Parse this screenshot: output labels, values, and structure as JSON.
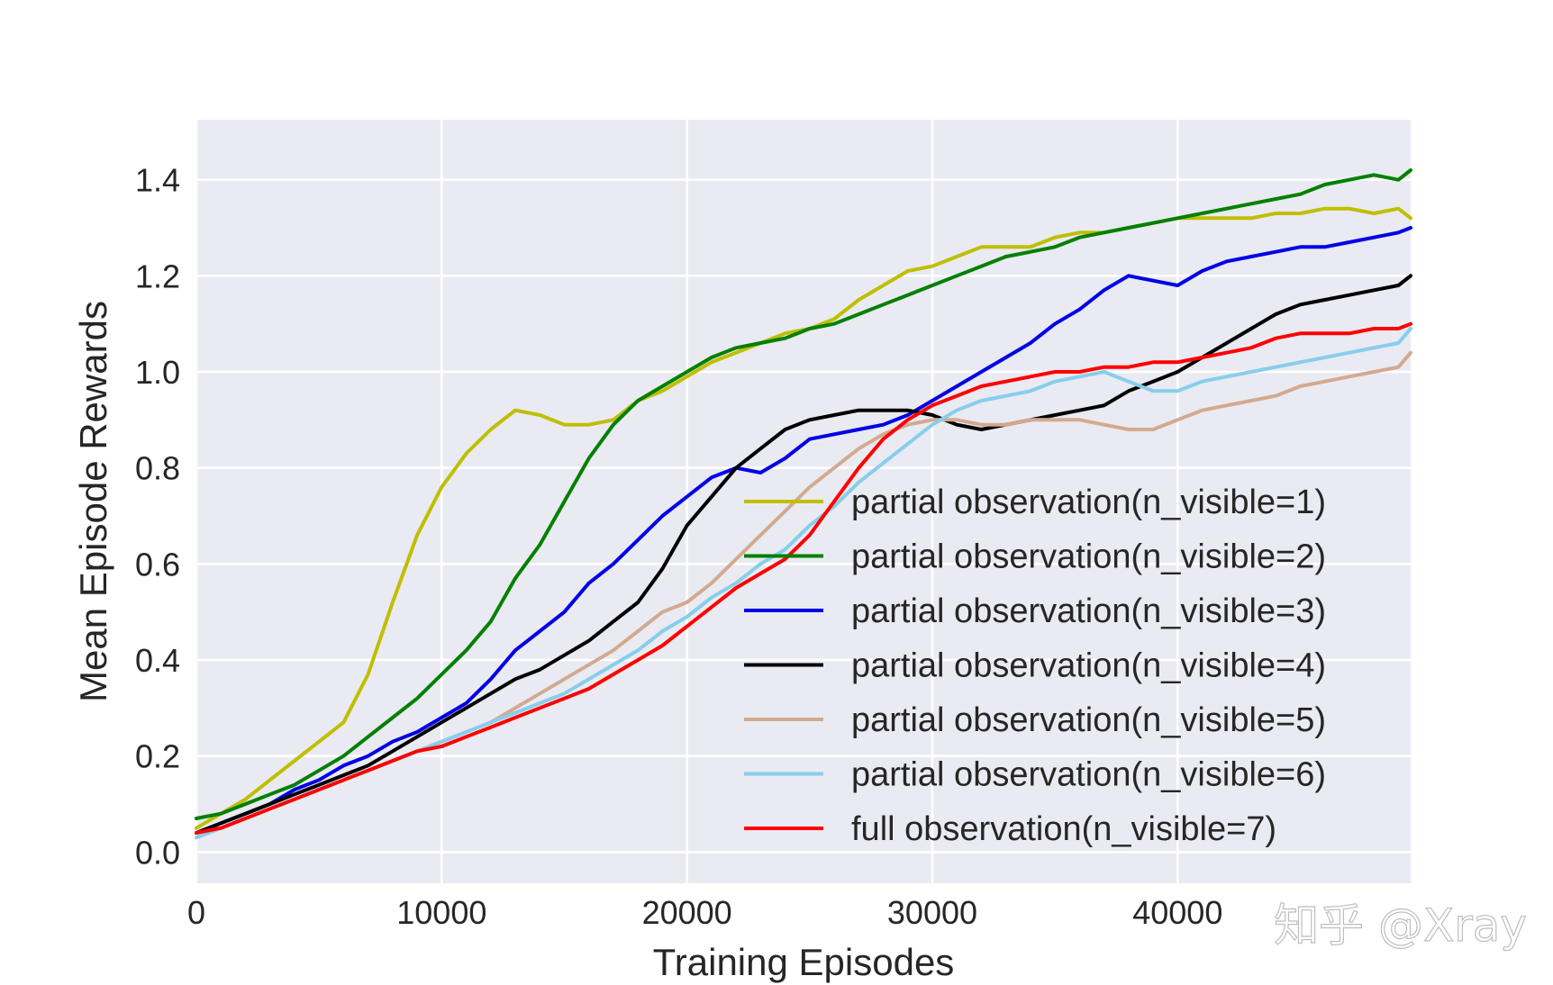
{
  "watermark": "知乎 @Xray",
  "chart_data": {
    "type": "line",
    "title": "",
    "xlabel": "Training Episodes",
    "ylabel": "Mean Episode Rewards",
    "xlim": [
      0,
      49500
    ],
    "ylim": [
      -0.065,
      1.525
    ],
    "xticks": [
      0,
      10000,
      20000,
      30000,
      40000
    ],
    "yticks": [
      0.0,
      0.2,
      0.4,
      0.6,
      0.8,
      1.0,
      1.2,
      1.4
    ],
    "x_tick_labels": [
      "0",
      "10000",
      "20000",
      "30000",
      "40000"
    ],
    "y_tick_labels": [
      "0.0",
      "0.2",
      "0.4",
      "0.6",
      "0.8",
      "1.0",
      "1.2",
      "1.4"
    ],
    "grid": true,
    "legend_position": "lower-right",
    "x": [
      0,
      1000,
      2000,
      3000,
      4000,
      5000,
      6000,
      7000,
      8000,
      9000,
      10000,
      11000,
      12000,
      13000,
      14000,
      15000,
      16000,
      17000,
      18000,
      19000,
      20000,
      21000,
      22000,
      23000,
      24000,
      25000,
      26000,
      27000,
      28000,
      29000,
      30000,
      31000,
      32000,
      33000,
      34000,
      35000,
      36000,
      37000,
      38000,
      39000,
      40000,
      41000,
      42000,
      43000,
      44000,
      45000,
      46000,
      47000,
      48000,
      49000,
      49500
    ],
    "series": [
      {
        "name": "partial observation(n_visible=1)",
        "color": "#bfbf00",
        "values": [
          0.05,
          0.08,
          0.11,
          0.15,
          0.19,
          0.23,
          0.27,
          0.37,
          0.52,
          0.66,
          0.76,
          0.83,
          0.88,
          0.92,
          0.91,
          0.89,
          0.89,
          0.9,
          0.94,
          0.96,
          0.99,
          1.02,
          1.04,
          1.06,
          1.08,
          1.09,
          1.11,
          1.15,
          1.18,
          1.21,
          1.22,
          1.24,
          1.26,
          1.26,
          1.26,
          1.28,
          1.29,
          1.29,
          1.3,
          1.31,
          1.32,
          1.32,
          1.32,
          1.32,
          1.33,
          1.33,
          1.34,
          1.34,
          1.33,
          1.34,
          1.32
        ]
      },
      {
        "name": "partial observation(n_visible=2)",
        "color": "#008000",
        "values": [
          0.07,
          0.08,
          0.1,
          0.12,
          0.14,
          0.17,
          0.2,
          0.24,
          0.28,
          0.32,
          0.37,
          0.42,
          0.48,
          0.57,
          0.64,
          0.73,
          0.82,
          0.89,
          0.94,
          0.97,
          1.0,
          1.03,
          1.05,
          1.06,
          1.07,
          1.09,
          1.1,
          1.12,
          1.14,
          1.16,
          1.18,
          1.2,
          1.22,
          1.24,
          1.25,
          1.26,
          1.28,
          1.29,
          1.3,
          1.31,
          1.32,
          1.33,
          1.34,
          1.35,
          1.36,
          1.37,
          1.39,
          1.4,
          1.41,
          1.4,
          1.42
        ]
      },
      {
        "name": "partial observation(n_visible=3)",
        "color": "#0000e6",
        "values": [
          0.04,
          0.06,
          0.08,
          0.1,
          0.13,
          0.15,
          0.18,
          0.2,
          0.23,
          0.25,
          0.28,
          0.31,
          0.36,
          0.42,
          0.46,
          0.5,
          0.56,
          0.6,
          0.65,
          0.7,
          0.74,
          0.78,
          0.8,
          0.79,
          0.82,
          0.86,
          0.87,
          0.88,
          0.89,
          0.91,
          0.94,
          0.97,
          1.0,
          1.03,
          1.06,
          1.1,
          1.13,
          1.17,
          1.2,
          1.19,
          1.18,
          1.21,
          1.23,
          1.24,
          1.25,
          1.26,
          1.26,
          1.27,
          1.28,
          1.29,
          1.3
        ]
      },
      {
        "name": "partial observation(n_visible=4)",
        "color": "#000000",
        "values": [
          0.04,
          0.06,
          0.08,
          0.1,
          0.12,
          0.14,
          0.16,
          0.18,
          0.21,
          0.24,
          0.27,
          0.3,
          0.33,
          0.36,
          0.38,
          0.41,
          0.44,
          0.48,
          0.52,
          0.59,
          0.68,
          0.74,
          0.8,
          0.84,
          0.88,
          0.9,
          0.91,
          0.92,
          0.92,
          0.92,
          0.91,
          0.89,
          0.88,
          0.89,
          0.9,
          0.91,
          0.92,
          0.93,
          0.96,
          0.98,
          1.0,
          1.03,
          1.06,
          1.09,
          1.12,
          1.14,
          1.15,
          1.16,
          1.17,
          1.18,
          1.2
        ]
      },
      {
        "name": "partial observation(n_visible=5)",
        "color": "#d2aa90",
        "values": [
          0.04,
          0.05,
          0.07,
          0.09,
          0.11,
          0.13,
          0.15,
          0.17,
          0.19,
          0.21,
          0.23,
          0.25,
          0.27,
          0.3,
          0.33,
          0.36,
          0.39,
          0.42,
          0.46,
          0.5,
          0.52,
          0.56,
          0.61,
          0.66,
          0.71,
          0.76,
          0.8,
          0.84,
          0.87,
          0.89,
          0.9,
          0.9,
          0.89,
          0.89,
          0.9,
          0.9,
          0.9,
          0.89,
          0.88,
          0.88,
          0.9,
          0.92,
          0.93,
          0.94,
          0.95,
          0.97,
          0.98,
          0.99,
          1.0,
          1.01,
          1.04
        ]
      },
      {
        "name": "partial observation(n_visible=6)",
        "color": "#87ceeb",
        "values": [
          0.03,
          0.05,
          0.07,
          0.09,
          0.11,
          0.13,
          0.15,
          0.17,
          0.19,
          0.21,
          0.23,
          0.25,
          0.27,
          0.29,
          0.31,
          0.33,
          0.36,
          0.39,
          0.42,
          0.46,
          0.49,
          0.53,
          0.56,
          0.6,
          0.63,
          0.68,
          0.72,
          0.77,
          0.81,
          0.85,
          0.89,
          0.92,
          0.94,
          0.95,
          0.96,
          0.98,
          0.99,
          1.0,
          0.98,
          0.96,
          0.96,
          0.98,
          0.99,
          1.0,
          1.01,
          1.02,
          1.03,
          1.04,
          1.05,
          1.06,
          1.09
        ]
      },
      {
        "name": "full observation(n_visible=7)",
        "color": "#ff0000",
        "values": [
          0.04,
          0.05,
          0.07,
          0.09,
          0.11,
          0.13,
          0.15,
          0.17,
          0.19,
          0.21,
          0.22,
          0.24,
          0.26,
          0.28,
          0.3,
          0.32,
          0.34,
          0.37,
          0.4,
          0.43,
          0.47,
          0.51,
          0.55,
          0.58,
          0.61,
          0.66,
          0.73,
          0.8,
          0.86,
          0.9,
          0.93,
          0.95,
          0.97,
          0.98,
          0.99,
          1.0,
          1.0,
          1.01,
          1.01,
          1.02,
          1.02,
          1.03,
          1.04,
          1.05,
          1.07,
          1.08,
          1.08,
          1.08,
          1.09,
          1.09,
          1.1
        ]
      }
    ]
  }
}
